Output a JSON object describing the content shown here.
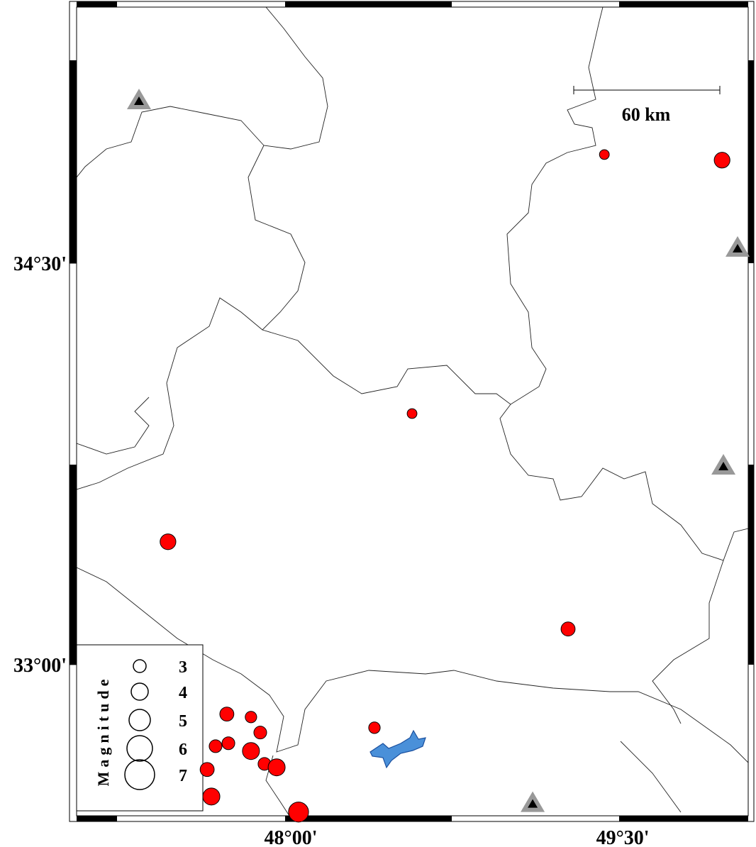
{
  "map": {
    "xlim": [
      47.032,
      50.067
    ],
    "ylim": [
      32.435,
      35.457
    ],
    "xticks": [
      {
        "value": 48.0,
        "label": "48°00'"
      },
      {
        "value": 49.5,
        "label": "49°30'"
      }
    ],
    "yticks": [
      {
        "value": 34.5,
        "label": "34°30'"
      },
      {
        "value": 33.0,
        "label": "33°00'"
      }
    ],
    "scale_bar": {
      "label": "60 km"
    },
    "legend": {
      "title": "Magnitude",
      "sizes": [
        3,
        4,
        5,
        6,
        7
      ]
    },
    "events": [
      {
        "lon": 49.417,
        "lat": 34.906,
        "mag": 2.3
      },
      {
        "lon": 49.949,
        "lat": 34.885,
        "mag": 3.7
      },
      {
        "lon": 48.548,
        "lat": 33.938,
        "mag": 2.3
      },
      {
        "lon": 47.445,
        "lat": 33.459,
        "mag": 3.7
      },
      {
        "lon": 49.253,
        "lat": 33.133,
        "mag": 3.3
      },
      {
        "lon": 48.378,
        "lat": 32.764,
        "mag": 2.7
      },
      {
        "lon": 47.711,
        "lat": 32.815,
        "mag": 3.3
      },
      {
        "lon": 47.82,
        "lat": 32.804,
        "mag": 2.7
      },
      {
        "lon": 47.862,
        "lat": 32.746,
        "mag": 3
      },
      {
        "lon": 47.66,
        "lat": 32.695,
        "mag": 3
      },
      {
        "lon": 47.718,
        "lat": 32.706,
        "mag": 3
      },
      {
        "lon": 47.82,
        "lat": 32.677,
        "mag": 4
      },
      {
        "lon": 47.881,
        "lat": 32.629,
        "mag": 3
      },
      {
        "lon": 47.936,
        "lat": 32.616,
        "mag": 4
      },
      {
        "lon": 47.622,
        "lat": 32.608,
        "mag": 3.3
      },
      {
        "lon": 47.641,
        "lat": 32.507,
        "mag": 4
      },
      {
        "lon": 48.035,
        "lat": 32.449,
        "mag": 4.7
      }
    ],
    "stations": [
      {
        "lon": 47.314,
        "lat": 35.107
      },
      {
        "lon": 50.019,
        "lat": 34.556
      },
      {
        "lon": 49.955,
        "lat": 33.742
      },
      {
        "lon": 49.093,
        "lat": 32.481
      }
    ]
  }
}
